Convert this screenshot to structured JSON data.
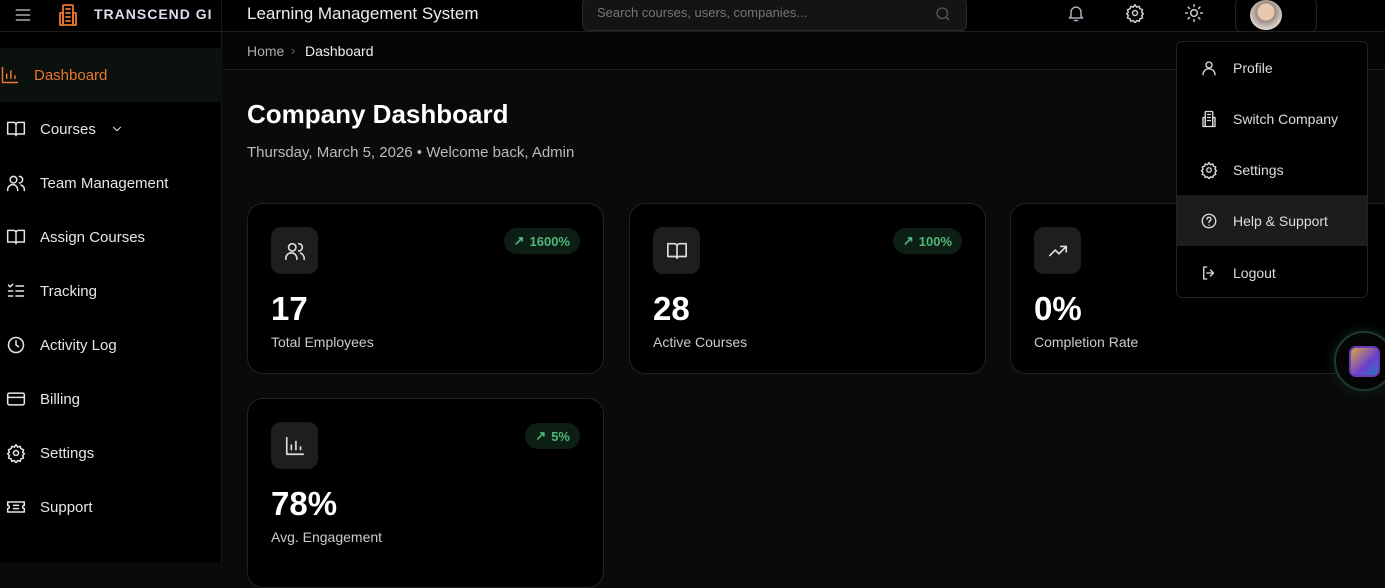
{
  "brand": {
    "name": "TRANSCEND GI",
    "accent": "#e8772e"
  },
  "header": {
    "title": "Learning Management System",
    "search_placeholder": "Search courses, users, companies..."
  },
  "breadcrumb": {
    "home": "Home",
    "current": "Dashboard"
  },
  "sidebar": {
    "items": [
      {
        "label": "Dashboard",
        "icon": "bar-chart-icon",
        "active": true
      },
      {
        "label": "Courses",
        "icon": "book-icon",
        "expandable": true
      },
      {
        "label": "Team Management",
        "icon": "users-icon"
      },
      {
        "label": "Assign Courses",
        "icon": "book-icon"
      },
      {
        "label": "Tracking",
        "icon": "list-check-icon"
      },
      {
        "label": "Activity Log",
        "icon": "clock-icon"
      },
      {
        "label": "Billing",
        "icon": "credit-card-icon"
      },
      {
        "label": "Settings",
        "icon": "gear-icon"
      },
      {
        "label": "Support",
        "icon": "ticket-icon"
      }
    ]
  },
  "page": {
    "title": "Company Dashboard",
    "subtitle": "Thursday, March 5, 2026 • Welcome back, Admin"
  },
  "stats": [
    {
      "value": "17",
      "label": "Total Employees",
      "trend": "1600%",
      "icon": "users-icon"
    },
    {
      "value": "28",
      "label": "Active Courses",
      "trend": "100%",
      "icon": "book-icon"
    },
    {
      "value": "0%",
      "label": "Completion Rate",
      "icon": "trending-up-icon"
    },
    {
      "value": "78%",
      "label": "Avg. Engagement",
      "trend": "5%",
      "icon": "bar-chart-icon"
    }
  ],
  "user_menu": {
    "items": [
      {
        "label": "Profile",
        "icon": "user-icon"
      },
      {
        "label": "Switch Company",
        "icon": "building-icon"
      },
      {
        "label": "Settings",
        "icon": "gear-icon"
      },
      {
        "label": "Help & Support",
        "icon": "help-circle-icon",
        "highlighted": true
      },
      {
        "label": "Logout",
        "icon": "logout-icon"
      }
    ]
  }
}
